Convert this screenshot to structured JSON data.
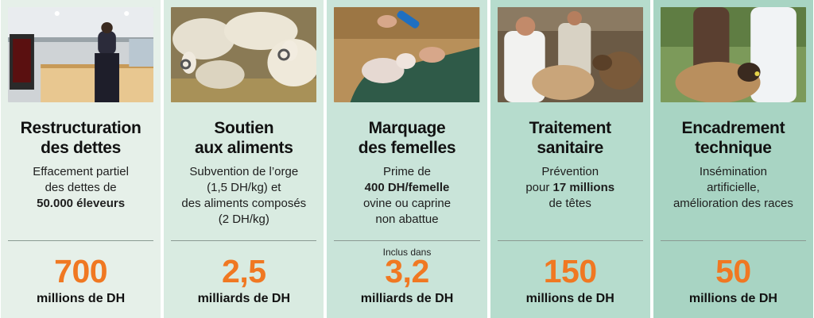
{
  "cards": [
    {
      "photo_icon": "bank-counter-photo",
      "title_line1": "Restructuration",
      "title_line2": "des dettes",
      "desc_line1": "Effacement partiel",
      "desc_line2": "des dettes de",
      "desc_line3_bold": "50.000 éleveurs",
      "note": "",
      "amount": "700",
      "unit": "millions de DH"
    },
    {
      "photo_icon": "sheep-flock-photo",
      "title_line1": "Soutien",
      "title_line2": "aux aliments",
      "desc_line1": "Subvention de l’orge",
      "desc_line2": "(1,5 DH/kg) et",
      "desc_line3": "des aliments composés",
      "desc_line4": "(2 DH/kg)",
      "note": "",
      "amount": "2,5",
      "unit": "milliards de DH"
    },
    {
      "photo_icon": "lamb-tagging-photo",
      "title_line1": "Marquage",
      "title_line2": "des femelles",
      "desc_line1": "Prime de",
      "desc_line2_bold": "400 DH/femelle",
      "desc_line3": "ovine ou caprine",
      "desc_line4": "non abattue",
      "note": "Inclus dans",
      "amount": "3,2",
      "unit": "milliards de DH"
    },
    {
      "photo_icon": "veterinarian-photo",
      "title_line1": "Traitement",
      "title_line2": "sanitaire",
      "desc_line1": "Prévention",
      "desc_line2_pre": "pour ",
      "desc_line2_bold": "17 millions",
      "desc_line3": "de têtes",
      "note": "",
      "amount": "150",
      "unit": "millions de DH"
    },
    {
      "photo_icon": "technician-sheep-photo",
      "title_line1": "Encadrement",
      "title_line2": "technique",
      "desc_line1": "Insémination",
      "desc_line2": "artificielle,",
      "desc_line3": "amélioration des races",
      "note": "",
      "amount": "50",
      "unit": "millions de DH"
    }
  ],
  "colors": {
    "accent_orange": "#f07822",
    "card_backgrounds": [
      "#e6f0e9",
      "#d9ebe1",
      "#c9e4d9",
      "#b6dccd",
      "#a8d4c3"
    ]
  }
}
